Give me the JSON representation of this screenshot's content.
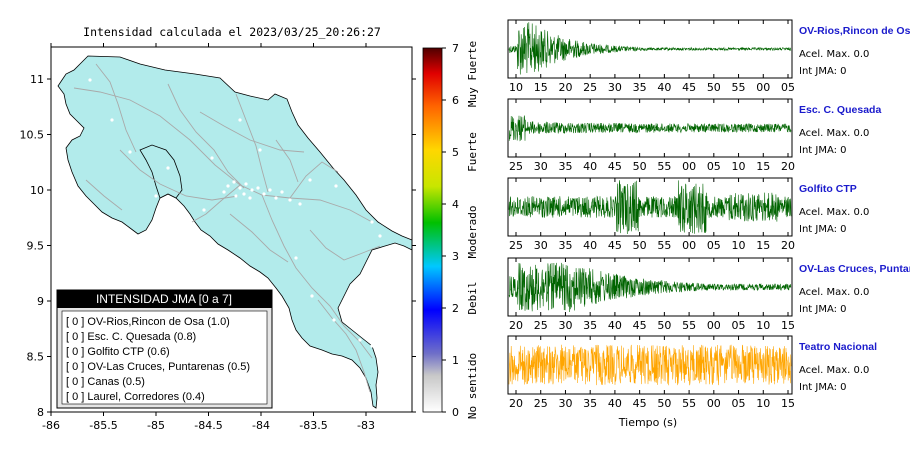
{
  "map": {
    "title": "Intensidad calculada el 2023/03/25_20:26:27",
    "x_ticks": [
      "-86",
      "-85.5",
      "-85",
      "-84.5",
      "-84",
      "-83.5",
      "-83"
    ],
    "y_ticks": [
      "11",
      "10.5",
      "10",
      "9.5",
      "9",
      "8.5",
      "8"
    ],
    "land_color": "#b2ebeb",
    "road_color": "#a9a9a9"
  },
  "colorbar": {
    "ticks": [
      "0",
      "1",
      "2",
      "3",
      "4",
      "5",
      "6",
      "7"
    ],
    "category_labels": [
      "No sentido",
      "Debil",
      "Moderado",
      "Fuerte",
      "Muy Fuerte"
    ]
  },
  "legend": {
    "title": "INTENSIDAD JMA [0 a 7]",
    "items": [
      "[ 0 ]  OV-Rios,Rincon de Osa (1.0)",
      "[ 0 ]  Esc. C. Quesada (0.8)",
      "[ 0 ]  Golfito CTP (0.6)",
      "[ 0 ]  OV-Las Cruces, Puntarenas (0.5)",
      "[ 0 ]  Canas (0.5)",
      "[ 0 ]  Laurel, Corredores (0.4)"
    ]
  },
  "stations": [
    {
      "name": "OV-Rios,Rincon de Osa",
      "acel": "Acel. Max. 0.0",
      "jma": "Int JMA: 0",
      "ticks": [
        "10",
        "15",
        "20",
        "25",
        "30",
        "35",
        "40",
        "45",
        "50",
        "55",
        "00",
        "05"
      ],
      "color": "#006400"
    },
    {
      "name": "Esc. C. Quesada",
      "acel": "Acel. Max. 0.0",
      "jma": "Int JMA: 0",
      "ticks": [
        "25",
        "30",
        "35",
        "40",
        "45",
        "50",
        "55",
        "00",
        "05",
        "10",
        "15",
        "20"
      ],
      "color": "#006400"
    },
    {
      "name": "Golfito CTP",
      "acel": "Acel. Max. 0.0",
      "jma": "Int JMA: 0",
      "ticks": [
        "25",
        "30",
        "35",
        "40",
        "45",
        "50",
        "55",
        "00",
        "05",
        "10",
        "15",
        "20"
      ],
      "color": "#006400"
    },
    {
      "name": "OV-Las Cruces, Puntarenas",
      "acel": "Acel. Max. 0.0",
      "jma": "Int JMA: 0",
      "ticks": [
        "20",
        "25",
        "30",
        "35",
        "40",
        "45",
        "50",
        "55",
        "00",
        "05",
        "10",
        "15"
      ],
      "color": "#006400"
    },
    {
      "name": "Teatro Nacional",
      "acel": "Acel. Max. 0.0",
      "jma": "Int JMA: 0",
      "ticks": [
        "20",
        "25",
        "30",
        "35",
        "40",
        "45",
        "50",
        "55",
        "00",
        "05",
        "10",
        "15"
      ],
      "color": "#ffa500"
    }
  ],
  "xlabel": "Tiempo (s)"
}
